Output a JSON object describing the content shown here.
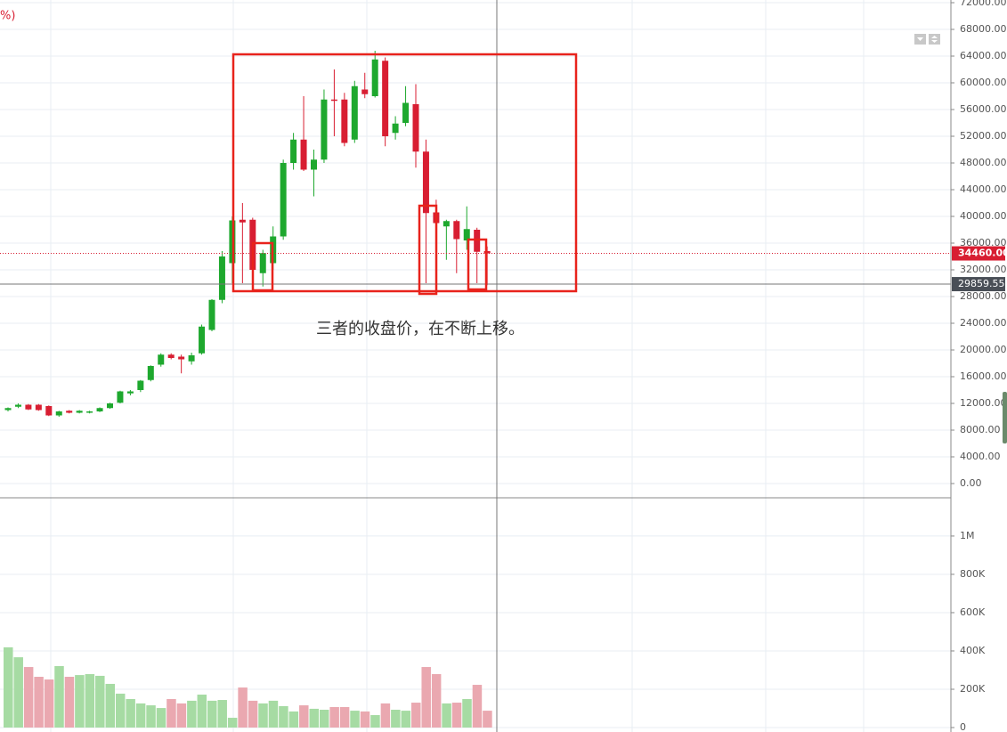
{
  "chart_data": [
    {
      "type": "candlestick",
      "title": "%)",
      "annotation": "三者的收盘价，在不断上移。",
      "up_color": "#1ea82e",
      "down_color": "#d81e32",
      "open": [
        11000,
        11500,
        11800,
        11800,
        11600,
        10200,
        10900,
        10600,
        10700,
        10800,
        11300,
        12100,
        13500,
        14000,
        15500,
        17800,
        19300,
        19000,
        18300,
        19500,
        23000,
        27500,
        33000,
        39500,
        39500,
        31500,
        33000,
        37000,
        48000,
        51500,
        47000,
        48500,
        57500,
        57500,
        51500,
        59000,
        58000,
        63300,
        52500,
        54000,
        56800,
        49700,
        40600,
        38500,
        39300,
        36400,
        38000,
        34800
      ],
      "high": [
        11400,
        12000,
        11900,
        11900,
        11700,
        10900,
        11000,
        11000,
        10900,
        11400,
        12100,
        13900,
        14000,
        15500,
        17700,
        19500,
        19500,
        19300,
        19600,
        23800,
        27600,
        34800,
        40000,
        42000,
        39800,
        35000,
        38500,
        48500,
        52500,
        58000,
        50000,
        59000,
        62000,
        58500,
        60300,
        61500,
        64800,
        63800,
        55000,
        59500,
        59800,
        51500,
        42500,
        39500,
        39500,
        41500,
        38300,
        35500
      ],
      "low": [
        10800,
        11300,
        11000,
        10900,
        10100,
        10000,
        10500,
        10500,
        10500,
        10700,
        11200,
        12000,
        13200,
        13700,
        15300,
        17500,
        18600,
        16500,
        17800,
        19300,
        22800,
        27000,
        30000,
        30000,
        29000,
        29500,
        32000,
        36500,
        47000,
        46800,
        43000,
        48000,
        52000,
        50500,
        51000,
        57700,
        57800,
        50500,
        51500,
        53500,
        47300,
        30000,
        34000,
        33500,
        31500,
        35000,
        30000,
        29700
      ],
      "close": [
        11300,
        11800,
        11100,
        11000,
        10200,
        10800,
        10600,
        10900,
        10800,
        11300,
        12000,
        13800,
        13800,
        15400,
        17600,
        19300,
        18800,
        18600,
        19200,
        23500,
        27500,
        34000,
        39400,
        39100,
        32000,
        34500,
        37000,
        48000,
        51500,
        47000,
        48500,
        57500,
        57300,
        51000,
        59500,
        58300,
        63500,
        52000,
        53900,
        57000,
        49700,
        40500,
        39000,
        39300,
        36600,
        38100,
        34700,
        34460
      ],
      "ylim": [
        -2000,
        72400
      ],
      "yticks": [
        {
          "value": 0,
          "label": "0.00"
        },
        {
          "value": 4000,
          "label": "4000.00"
        },
        {
          "value": 8000,
          "label": "8000.00"
        },
        {
          "value": 12000,
          "label": "12000.00"
        },
        {
          "value": 16000,
          "label": "16000.00"
        },
        {
          "value": 20000,
          "label": "20000.00"
        },
        {
          "value": 24000,
          "label": "24000.00"
        },
        {
          "value": 28000,
          "label": "28000.00"
        },
        {
          "value": 32000,
          "label": "32000.00"
        },
        {
          "value": 36000,
          "label": "36000.00"
        },
        {
          "value": 40000,
          "label": "40000.00"
        },
        {
          "value": 44000,
          "label": "44000.00"
        },
        {
          "value": 48000,
          "label": "48000.00"
        },
        {
          "value": 52000,
          "label": "52000.00"
        },
        {
          "value": 56000,
          "label": "56000.00"
        },
        {
          "value": 60000,
          "label": "60000.00"
        },
        {
          "value": 64000,
          "label": "64000.00"
        },
        {
          "value": 68000,
          "label": "68000.00"
        },
        {
          "value": 72000,
          "label": "72000.00"
        }
      ],
      "last_price": {
        "value": 34460,
        "label": "34460.00"
      },
      "crosshair_price": 29859.55,
      "grid": true
    },
    {
      "type": "bar",
      "up_color": "#a6dba3",
      "down_color": "#eaa8b0",
      "values": [
        419000,
        367000,
        316000,
        265000,
        251000,
        321000,
        265000,
        274000,
        279000,
        270000,
        228000,
        177000,
        149000,
        126000,
        116000,
        102000,
        149000,
        126000,
        140000,
        172000,
        140000,
        144000,
        51000,
        209000,
        140000,
        126000,
        140000,
        112000,
        84000,
        116000,
        98000,
        93000,
        107000,
        107000,
        88000,
        84000,
        65000,
        126000,
        93000,
        88000,
        130000,
        316000,
        279000,
        126000,
        130000,
        149000,
        223000,
        88000
      ],
      "ylim": [
        0,
        1195000
      ],
      "yticks": [
        0,
        {
          "value": 200000,
          "label": "200K"
        },
        {
          "value": 400000,
          "label": "400K"
        },
        {
          "value": 600000,
          "label": "600K"
        },
        {
          "value": 800000,
          "label": "800K"
        },
        {
          "value": 1000000,
          "label": "1M"
        }
      ],
      "grid": true
    }
  ]
}
